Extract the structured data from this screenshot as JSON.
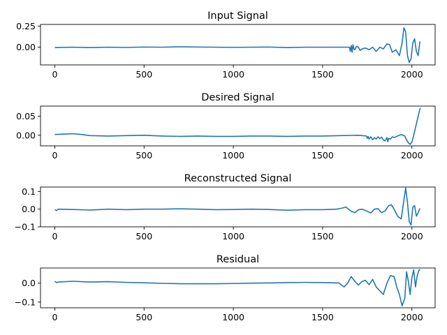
{
  "chart_data": [
    {
      "type": "line",
      "title": "Input Signal",
      "xlabel": "",
      "ylabel": "",
      "xlim": [
        -80,
        2130
      ],
      "ylim": [
        -0.21,
        0.27
      ],
      "xticks": [
        0,
        500,
        1000,
        1500,
        2000
      ],
      "xtick_labels": [
        "0",
        "500",
        "1000",
        "1500",
        "2000"
      ],
      "yticks": [
        0.25,
        0.0
      ],
      "ytick_labels": [
        "0.25",
        "0.00"
      ],
      "series": [
        {
          "color": "#1f77b4",
          "x": [
            0,
            100,
            200,
            300,
            400,
            500,
            600,
            700,
            800,
            900,
            1000,
            1100,
            1200,
            1300,
            1400,
            1500,
            1600,
            1650,
            1655,
            1660,
            1665,
            1670,
            1675,
            1680,
            1690,
            1700,
            1710,
            1720,
            1740,
            1760,
            1780,
            1800,
            1820,
            1840,
            1860,
            1875,
            1890,
            1910,
            1930,
            1945,
            1955,
            1965,
            1975,
            1985,
            1995,
            2005,
            2015,
            2025,
            2035,
            2045
          ],
          "y": [
            -0.005,
            0.0,
            -0.005,
            0.0,
            -0.003,
            0.002,
            0.0,
            0.005,
            0.002,
            0.0,
            -0.002,
            0.0,
            0.002,
            -0.005,
            0.0,
            0.0,
            0.0,
            0.0,
            -0.05,
            0.02,
            -0.06,
            0.03,
            -0.02,
            -0.03,
            0.01,
            0.0,
            -0.04,
            -0.02,
            -0.01,
            -0.03,
            0.0,
            -0.05,
            0.0,
            -0.02,
            0.04,
            0.03,
            -0.06,
            -0.03,
            -0.1,
            0.05,
            0.23,
            0.18,
            -0.1,
            -0.18,
            -0.14,
            0.05,
            0.1,
            -0.05,
            -0.1,
            0.07
          ]
        }
      ]
    },
    {
      "type": "line",
      "title": "Desired Signal",
      "xlabel": "",
      "ylabel": "",
      "xlim": [
        -80,
        2130
      ],
      "ylim": [
        -0.028,
        0.077
      ],
      "xticks": [
        0,
        500,
        1000,
        1500,
        2000
      ],
      "xtick_labels": [
        "0",
        "500",
        "1000",
        "1500",
        "2000"
      ],
      "yticks": [
        0.05,
        0.0
      ],
      "ytick_labels": [
        "0.05",
        "0.00"
      ],
      "series": [
        {
          "color": "#1f77b4",
          "x": [
            0,
            50,
            100,
            150,
            200,
            300,
            400,
            500,
            600,
            700,
            800,
            900,
            1000,
            1100,
            1200,
            1300,
            1400,
            1500,
            1600,
            1700,
            1745,
            1750,
            1755,
            1760,
            1770,
            1780,
            1790,
            1800,
            1810,
            1820,
            1830,
            1840,
            1850,
            1860,
            1865,
            1870,
            1880,
            1890,
            1900,
            1920,
            1940,
            1960,
            1970,
            1980,
            1990,
            2000,
            2010,
            2020,
            2030,
            2040,
            2047
          ],
          "y": [
            0.002,
            0.003,
            0.004,
            0.002,
            -0.001,
            -0.002,
            -0.001,
            0.0,
            -0.002,
            -0.003,
            -0.002,
            -0.003,
            -0.003,
            -0.002,
            -0.002,
            -0.003,
            -0.002,
            -0.002,
            -0.001,
            0.0,
            -0.002,
            -0.008,
            -0.003,
            -0.01,
            -0.004,
            -0.012,
            -0.006,
            -0.01,
            -0.004,
            -0.009,
            -0.005,
            -0.012,
            -0.015,
            -0.006,
            -0.017,
            -0.008,
            -0.01,
            -0.004,
            -0.006,
            -0.002,
            0.002,
            -0.002,
            -0.012,
            -0.02,
            -0.024,
            -0.018,
            0.0,
            0.02,
            0.04,
            0.06,
            0.072
          ]
        }
      ]
    },
    {
      "type": "line",
      "title": "Reconstructed Signal",
      "xlabel": "",
      "ylabel": "",
      "xlim": [
        -80,
        2130
      ],
      "ylim": [
        -0.1,
        0.125
      ],
      "xticks": [
        0,
        500,
        1000,
        1500,
        2000
      ],
      "xtick_labels": [
        "0",
        "500",
        "1000",
        "1500",
        "2000"
      ],
      "yticks": [
        0.1,
        0.0,
        -0.1
      ],
      "ytick_labels": [
        "0.1",
        "0.0",
        "−0.1"
      ],
      "series": [
        {
          "color": "#1f77b4",
          "x": [
            0,
            10,
            20,
            100,
            200,
            300,
            400,
            500,
            600,
            700,
            800,
            900,
            1000,
            1100,
            1200,
            1300,
            1400,
            1500,
            1580,
            1610,
            1630,
            1660,
            1680,
            1700,
            1720,
            1750,
            1770,
            1790,
            1810,
            1830,
            1850,
            1870,
            1885,
            1900,
            1920,
            1940,
            1955,
            1965,
            1975,
            1985,
            1995,
            2005,
            2015,
            2025,
            2035,
            2045
          ],
          "y": [
            -0.003,
            -0.008,
            0.0,
            -0.002,
            -0.005,
            0.0,
            -0.003,
            0.0,
            0.0,
            0.002,
            0.0,
            -0.003,
            -0.002,
            0.0,
            -0.002,
            -0.006,
            -0.003,
            -0.003,
            0.0,
            0.006,
            0.012,
            -0.012,
            -0.02,
            -0.004,
            0.0,
            -0.012,
            -0.022,
            0.0,
            0.003,
            -0.02,
            -0.01,
            0.02,
            0.025,
            0.0,
            -0.04,
            -0.055,
            0.05,
            0.12,
            0.04,
            -0.07,
            -0.09,
            0.01,
            0.02,
            -0.04,
            -0.02,
            0.005
          ]
        }
      ]
    },
    {
      "type": "line",
      "title": "Residual",
      "xlabel": "",
      "ylabel": "",
      "xlim": [
        -80,
        2130
      ],
      "ylim": [
        -0.13,
        0.08
      ],
      "xticks": [
        0,
        500,
        1000,
        1500,
        2000
      ],
      "xtick_labels": [
        "0",
        "500",
        "1000",
        "1500",
        "2000"
      ],
      "yticks": [
        0.0,
        -0.1
      ],
      "ytick_labels": [
        "0.0",
        "−0.1"
      ],
      "series": [
        {
          "color": "#1f77b4",
          "x": [
            0,
            10,
            20,
            100,
            200,
            300,
            400,
            500,
            600,
            700,
            800,
            900,
            1000,
            1100,
            1200,
            1300,
            1400,
            1500,
            1590,
            1620,
            1640,
            1660,
            1680,
            1700,
            1720,
            1740,
            1760,
            1780,
            1800,
            1820,
            1840,
            1860,
            1880,
            1900,
            1915,
            1930,
            1945,
            1960,
            1970,
            1980,
            1990,
            2000,
            2010,
            2020,
            2030,
            2040,
            2047
          ],
          "y": [
            0.01,
            0.003,
            0.006,
            0.01,
            0.006,
            0.008,
            0.004,
            0.002,
            -0.001,
            -0.003,
            -0.003,
            -0.003,
            -0.002,
            0.0,
            0.001,
            0.003,
            0.004,
            0.003,
            0.001,
            -0.02,
            0.0,
            0.035,
            0.01,
            -0.01,
            0.008,
            0.015,
            -0.008,
            0.02,
            -0.02,
            -0.04,
            -0.06,
            0.0,
            0.04,
            0.035,
            -0.02,
            -0.06,
            -0.12,
            -0.08,
            0.06,
            0.01,
            -0.06,
            0.03,
            0.07,
            -0.02,
            0.04,
            0.07,
            0.07
          ]
        }
      ]
    }
  ]
}
